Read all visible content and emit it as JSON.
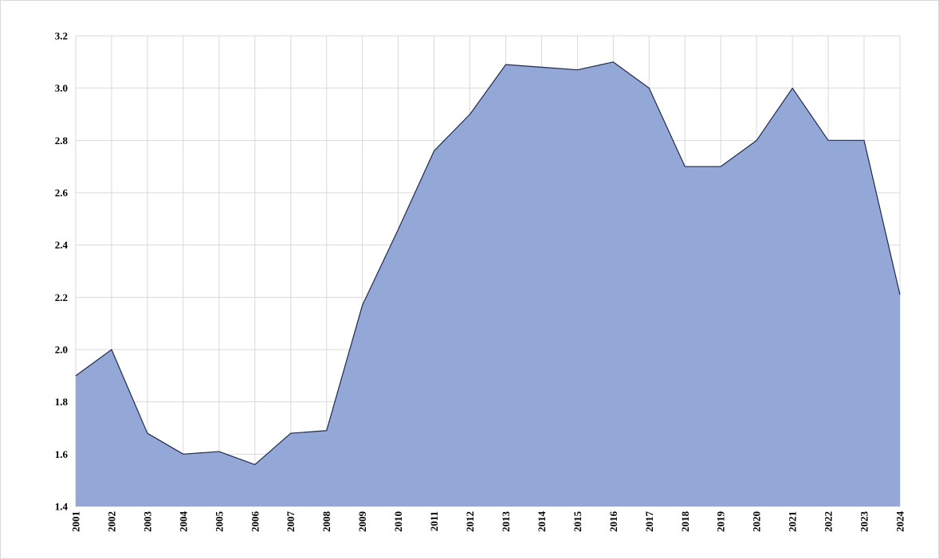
{
  "chart_data": {
    "type": "area",
    "title": "",
    "xlabel": "",
    "ylabel": "",
    "x": [
      "2001",
      "2002",
      "2003",
      "2004",
      "2005",
      "2006",
      "2007",
      "2008",
      "2009",
      "2010",
      "2011",
      "2012",
      "2013",
      "2014",
      "2015",
      "2016",
      "2017",
      "2018",
      "2019",
      "2020",
      "2021",
      "2022",
      "2023",
      "2024"
    ],
    "series": [
      {
        "values": [
          1.9,
          2.0,
          1.68,
          1.6,
          1.61,
          1.56,
          1.68,
          1.69,
          2.17,
          2.46,
          2.76,
          2.9,
          3.09,
          3.08,
          3.07,
          3.1,
          3.0,
          2.7,
          2.7,
          2.8,
          3.0,
          2.8,
          2.8,
          2.21
        ]
      }
    ],
    "yticks": [
      "1.4",
      "1.6",
      "1.8",
      "2.0",
      "2.2",
      "2.4",
      "2.6",
      "2.8",
      "3.0",
      "3.2"
    ],
    "ylim": [
      1.4,
      3.2
    ],
    "grid": true,
    "legend": "none",
    "colors": {
      "fill": "#94a8d7",
      "line": "#1f2a4f",
      "grid": "#d9d9d9"
    }
  }
}
